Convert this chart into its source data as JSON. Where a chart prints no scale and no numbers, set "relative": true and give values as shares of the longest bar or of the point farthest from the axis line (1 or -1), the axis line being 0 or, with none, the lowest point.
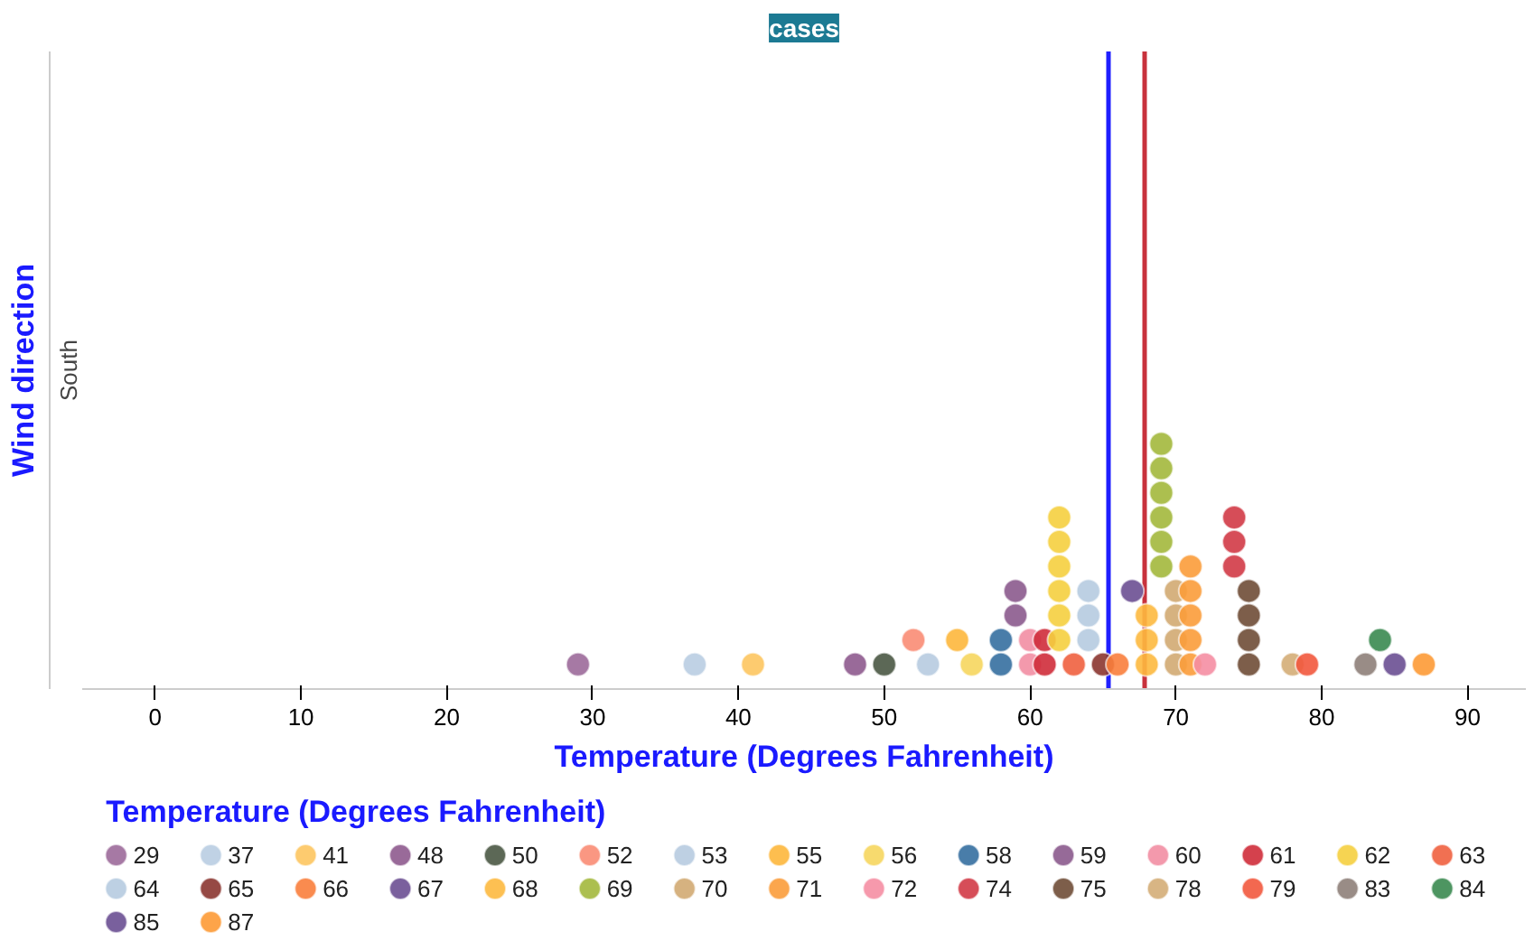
{
  "chart_data": {
    "type": "scatter",
    "title": "cases",
    "xlabel": "Temperature (Degrees Fahrenheit)",
    "ylabel": "Wind direction",
    "legend_title": "Temperature (Degrees Fahrenheit)",
    "xlim": [
      -5,
      94
    ],
    "xticks": [
      0,
      10,
      20,
      30,
      40,
      50,
      60,
      70,
      80,
      90
    ],
    "relative": true,
    "annotations": [
      "South"
    ],
    "grid": false,
    "legend": "bottom",
    "marker": "circle",
    "ref_lines": [
      {
        "axis": "x",
        "value": 65.4,
        "color": "#1f1fff"
      },
      {
        "axis": "x",
        "value": 67.9,
        "color": "#c8323c"
      }
    ],
    "series": [
      {
        "name": "29",
        "color": "#9c6a9a",
        "x": [
          29
        ],
        "values": [
          0.1
        ]
      },
      {
        "name": "37",
        "color": "#b9cde2",
        "x": [
          37
        ],
        "values": [
          0.1
        ]
      },
      {
        "name": "41",
        "color": "#fdc55f",
        "x": [
          41
        ],
        "values": [
          0.1
        ]
      },
      {
        "name": "48",
        "color": "#8e5a8e",
        "x": [
          48
        ],
        "values": [
          0.1
        ]
      },
      {
        "name": "50",
        "color": "#4a5844",
        "x": [
          50
        ],
        "values": [
          0.1
        ]
      },
      {
        "name": "52",
        "color": "#fa8c74",
        "x": [
          52
        ],
        "values": [
          0.2
        ]
      },
      {
        "name": "53",
        "color": "#b7cbe0",
        "x": [
          53
        ],
        "values": [
          0.1
        ]
      },
      {
        "name": "55",
        "color": "#fdb73c",
        "x": [
          55
        ],
        "values": [
          0.2
        ]
      },
      {
        "name": "56",
        "color": "#f6d65e",
        "x": [
          56
        ],
        "values": [
          0.1
        ]
      },
      {
        "name": "58",
        "color": "#356fa0",
        "x": [
          58,
          58
        ],
        "values": [
          0.1,
          0.2
        ]
      },
      {
        "name": "59",
        "color": "#8b5a8d",
        "x": [
          59,
          59
        ],
        "values": [
          0.3,
          0.4
        ]
      },
      {
        "name": "60",
        "color": "#f28ea3",
        "x": [
          60,
          60
        ],
        "values": [
          0.1,
          0.2
        ]
      },
      {
        "name": "61",
        "color": "#cf2c3a",
        "x": [
          61,
          61
        ],
        "values": [
          0.1,
          0.2
        ]
      },
      {
        "name": "62",
        "color": "#f5cf3f",
        "x": [
          62,
          62,
          62,
          62,
          62,
          62
        ],
        "values": [
          0.2,
          0.3,
          0.4,
          0.5,
          0.6,
          0.7
        ]
      },
      {
        "name": "63",
        "color": "#f0613f",
        "x": [
          63
        ],
        "values": [
          0.1
        ]
      },
      {
        "name": "64",
        "color": "#b6cbe0",
        "x": [
          64,
          64,
          64
        ],
        "values": [
          0.2,
          0.3,
          0.4
        ]
      },
      {
        "name": "65",
        "color": "#8b3530",
        "x": [
          65
        ],
        "values": [
          0.1
        ]
      },
      {
        "name": "66",
        "color": "#f97e3c",
        "x": [
          66
        ],
        "values": [
          0.1
        ]
      },
      {
        "name": "67",
        "color": "#6b4f92",
        "x": [
          67
        ],
        "values": [
          0.4
        ]
      },
      {
        "name": "68",
        "color": "#fdb93f",
        "x": [
          68,
          68,
          68
        ],
        "values": [
          0.1,
          0.2,
          0.3
        ]
      },
      {
        "name": "69",
        "color": "#a3b83c",
        "x": [
          69,
          69,
          69,
          69,
          69,
          69
        ],
        "values": [
          0.5,
          0.6,
          0.7,
          0.8,
          0.9,
          1.0
        ]
      },
      {
        "name": "70",
        "color": "#d2aa72",
        "x": [
          70,
          70,
          70,
          70
        ],
        "values": [
          0.1,
          0.2,
          0.3,
          0.4
        ]
      },
      {
        "name": "71",
        "color": "#fb9c3a",
        "x": [
          71,
          71,
          71,
          71,
          71
        ],
        "values": [
          0.1,
          0.2,
          0.3,
          0.4,
          0.5
        ]
      },
      {
        "name": "72",
        "color": "#f58ea3",
        "x": [
          72
        ],
        "values": [
          0.1
        ]
      },
      {
        "name": "74",
        "color": "#d23a46",
        "x": [
          74,
          74,
          74
        ],
        "values": [
          0.5,
          0.6,
          0.7
        ]
      },
      {
        "name": "75",
        "color": "#6f4c36",
        "x": [
          75,
          75,
          75,
          75
        ],
        "values": [
          0.1,
          0.2,
          0.3,
          0.4
        ]
      },
      {
        "name": "78",
        "color": "#d4ad77",
        "x": [
          78
        ],
        "values": [
          0.1
        ]
      },
      {
        "name": "79",
        "color": "#f2583d",
        "x": [
          79
        ],
        "values": [
          0.1
        ]
      },
      {
        "name": "83",
        "color": "#8e8079",
        "x": [
          83
        ],
        "values": [
          0.1
        ]
      },
      {
        "name": "84",
        "color": "#3a8a50",
        "x": [
          84
        ],
        "values": [
          0.2
        ]
      },
      {
        "name": "85",
        "color": "#6a4f92",
        "x": [
          85
        ],
        "values": [
          0.1
        ]
      },
      {
        "name": "87",
        "color": "#fd9a35",
        "x": [
          87
        ],
        "values": [
          0.1
        ]
      }
    ]
  }
}
